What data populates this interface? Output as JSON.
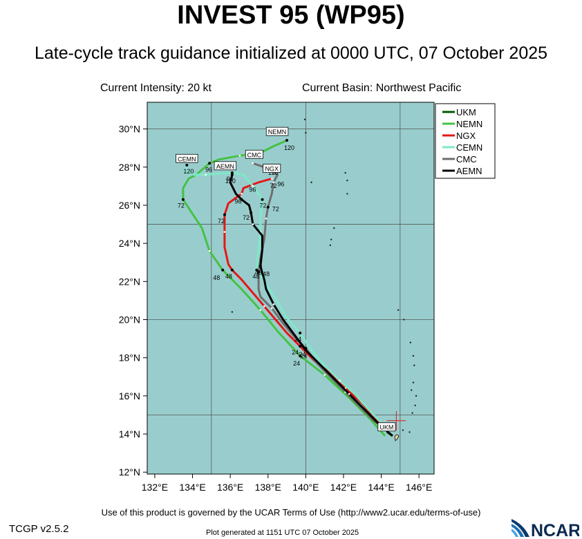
{
  "header": {
    "title": "INVEST 95 (WP95)",
    "subtitle": "Late-cycle track guidance initialized at 0000 UTC, 07 October 2025",
    "intensity": "Current Intensity: 20 kt",
    "basin": "Current Basin: Northwest Pacific"
  },
  "footer": {
    "terms": "Use of this product is governed by the UCAR Terms of Use (http://www2.ucar.edu/terms-of-use)",
    "version": "TCGP v2.5.2",
    "generated": "Plot generated at 1151 UTC   07 October 2025",
    "logo_text": "NCAR"
  },
  "chart_data": {
    "type": "line",
    "xlim": [
      131.6,
      146.8
    ],
    "ylim": [
      11.9,
      31.4
    ],
    "x_ticks": [
      132,
      134,
      136,
      138,
      140,
      142,
      144,
      146
    ],
    "x_tick_labels": [
      "132°E",
      "134°E",
      "136°E",
      "138°E",
      "140°E",
      "142°E",
      "144°E",
      "146°E"
    ],
    "y_ticks": [
      12,
      14,
      16,
      18,
      20,
      22,
      24,
      26,
      28,
      30
    ],
    "y_tick_labels": [
      "12°N",
      "14°N",
      "16°N",
      "18°N",
      "20°N",
      "22°N",
      "24°N",
      "26°N",
      "28°N",
      "30°N"
    ],
    "grid_lon": [
      135,
      140,
      145
    ],
    "grid_lat": [
      15,
      20,
      25,
      30
    ],
    "ocean_color": "#99cdcd",
    "legend_position": "top-right",
    "current_position": {
      "lon": 144.8,
      "lat": 14.7,
      "label": "UKM"
    },
    "series": [
      {
        "name": "UKM",
        "color": "#005a00",
        "points": [
          [
            144.6,
            13.9
          ],
          [
            144.3,
            14.1
          ]
        ],
        "hour_labels": []
      },
      {
        "name": "NEMN",
        "color": "#44c244",
        "points": [
          [
            144.2,
            13.9
          ],
          [
            143.4,
            14.8
          ],
          [
            142.3,
            15.9
          ],
          [
            141.0,
            17.1
          ],
          [
            139.7,
            18.1
          ],
          [
            138.5,
            19.4
          ],
          [
            137.6,
            20.5
          ],
          [
            136.6,
            21.6
          ],
          [
            135.6,
            22.6
          ],
          [
            134.9,
            23.6
          ],
          [
            134.5,
            24.8
          ],
          [
            133.9,
            25.7
          ],
          [
            133.5,
            26.3
          ],
          [
            133.5,
            26.9
          ],
          [
            133.8,
            27.4
          ],
          [
            134.2,
            27.6
          ],
          [
            134.9,
            28.2
          ],
          [
            135.4,
            28.4
          ],
          [
            136.5,
            28.6
          ],
          [
            137.5,
            28.7
          ],
          [
            138.3,
            29.1
          ],
          [
            139.0,
            29.4
          ]
        ],
        "hour_labels": [
          {
            "h": "24",
            "i": 4,
            "dx": -10,
            "dy": 14
          },
          {
            "h": "48",
            "i": 8,
            "dx": -14,
            "dy": 14
          },
          {
            "h": "72",
            "i": 12,
            "dx": -8,
            "dy": 12
          },
          {
            "h": "96",
            "i": 16,
            "dx": -6,
            "dy": 12
          },
          {
            "h": "120",
            "i": 21,
            "dx": -4,
            "dy": 14
          }
        ],
        "end_label": {
          "text": "NEMN",
          "i": 21,
          "dx": -14,
          "dy": -12
        },
        "start_label": {
          "text": "CEMN",
          "lon": 133.7,
          "lat": 28.2
        }
      },
      {
        "name": "NGX",
        "color": "#e51717",
        "points": [
          [
            144.2,
            14.3
          ],
          [
            143.7,
            14.8
          ],
          [
            143.0,
            15.6
          ],
          [
            142.1,
            16.4
          ],
          [
            141.3,
            17.2
          ],
          [
            140.5,
            17.8
          ],
          [
            139.7,
            18.6
          ],
          [
            139.0,
            19.3
          ],
          [
            138.4,
            20.0
          ],
          [
            137.8,
            20.7
          ],
          [
            137.2,
            21.4
          ],
          [
            136.6,
            22.1
          ],
          [
            136.1,
            22.6
          ],
          [
            135.9,
            22.9
          ],
          [
            135.7,
            23.8
          ],
          [
            135.7,
            24.6
          ],
          [
            135.7,
            25.5
          ],
          [
            135.9,
            26.1
          ],
          [
            136.6,
            26.6
          ],
          [
            136.7,
            26.9
          ],
          [
            137.5,
            27.2
          ],
          [
            138.2,
            27.4
          ]
        ],
        "hour_labels": [
          {
            "h": "24",
            "i": 6,
            "dx": -12,
            "dy": 12
          },
          {
            "h": "48",
            "i": 12,
            "dx": -10,
            "dy": 12
          },
          {
            "h": "72",
            "i": 16,
            "dx": -10,
            "dy": 12
          }
        ]
      },
      {
        "name": "CEMN",
        "color": "#7fe8c8",
        "points": [
          [
            144.3,
            14.3
          ],
          [
            143.6,
            15.0
          ],
          [
            142.6,
            16.1
          ],
          [
            141.8,
            16.8
          ],
          [
            141.0,
            17.6
          ],
          [
            140.3,
            18.4
          ],
          [
            139.7,
            19.3
          ],
          [
            139.0,
            20.1
          ],
          [
            138.4,
            21.1
          ],
          [
            137.8,
            22.0
          ],
          [
            137.4,
            22.6
          ],
          [
            137.5,
            23.7
          ],
          [
            137.6,
            24.6
          ],
          [
            137.6,
            25.4
          ],
          [
            137.7,
            26.3
          ],
          [
            137.2,
            27.0
          ],
          [
            136.7,
            27.6
          ],
          [
            136.1,
            27.7
          ],
          [
            134.7,
            27.6
          ],
          [
            134.1,
            27.6
          ],
          [
            133.6,
            27.8
          ],
          [
            133.7,
            28.1
          ]
        ],
        "hour_labels": [
          {
            "h": "24",
            "i": 6,
            "dx": -8,
            "dy": 12
          },
          {
            "h": "48",
            "i": 10,
            "dx": -6,
            "dy": 12
          },
          {
            "h": "72",
            "i": 14,
            "dx": -4,
            "dy": 12
          },
          {
            "h": "96",
            "i": 17,
            "dx": -8,
            "dy": 12
          },
          {
            "h": "120",
            "i": 21,
            "dx": -5,
            "dy": 12
          }
        ]
      },
      {
        "name": "CMC",
        "color": "#6e6e6e",
        "points": [
          [
            144.3,
            14.2
          ],
          [
            143.6,
            14.7
          ],
          [
            142.9,
            15.4
          ],
          [
            142.1,
            16.2
          ],
          [
            141.3,
            17.0
          ],
          [
            140.6,
            17.7
          ],
          [
            140.0,
            18.5
          ],
          [
            139.4,
            19.1
          ],
          [
            138.8,
            19.8
          ],
          [
            138.2,
            20.6
          ],
          [
            137.6,
            21.2
          ],
          [
            137.5,
            21.6
          ],
          [
            137.5,
            22.5
          ],
          [
            137.6,
            23.2
          ],
          [
            137.8,
            24.2
          ],
          [
            137.9,
            25.3
          ],
          [
            138.0,
            25.9
          ],
          [
            138.2,
            26.6
          ],
          [
            138.3,
            27.2
          ],
          [
            138.5,
            27.6
          ],
          [
            137.8,
            28.0
          ],
          [
            137.2,
            28.2
          ]
        ],
        "hour_labels": [
          {
            "h": "24",
            "i": 6,
            "dx": -10,
            "dy": 12
          },
          {
            "h": "48",
            "i": 12,
            "dx": 6,
            "dy": 6
          },
          {
            "h": "72",
            "i": 16,
            "dx": 6,
            "dy": 6
          }
        ],
        "end_label": {
          "text": "CMC",
          "i": 21,
          "dx": 2,
          "dy": -12
        }
      },
      {
        "name": "AEMN",
        "color": "#000000",
        "points": [
          [
            144.6,
            13.9
          ],
          [
            143.9,
            14.5
          ],
          [
            143.1,
            15.3
          ],
          [
            142.3,
            16.1
          ],
          [
            141.5,
            16.9
          ],
          [
            140.7,
            17.7
          ],
          [
            140.0,
            18.4
          ],
          [
            139.4,
            19.2
          ],
          [
            138.8,
            20.0
          ],
          [
            138.3,
            20.8
          ],
          [
            137.9,
            21.6
          ],
          [
            137.8,
            22.1
          ],
          [
            137.6,
            22.8
          ],
          [
            137.7,
            23.7
          ],
          [
            137.7,
            24.4
          ],
          [
            137.2,
            25.0
          ],
          [
            137.1,
            25.6
          ],
          [
            137.0,
            26.0
          ],
          [
            136.6,
            26.3
          ],
          [
            136.3,
            26.6
          ],
          [
            136.0,
            27.2
          ],
          [
            136.1,
            27.6
          ]
        ],
        "hour_labels": [
          {
            "h": "24",
            "i": 6,
            "dx": -8,
            "dy": 12
          },
          {
            "h": "48",
            "i": 12,
            "dx": -8,
            "dy": 12
          },
          {
            "h": "72",
            "i": 16,
            "dx": -12,
            "dy": 10
          },
          {
            "h": "96",
            "i": 18,
            "dx": -10,
            "dy": 6
          },
          {
            "h": "120",
            "i": 21,
            "dx": -10,
            "dy": 12
          }
        ],
        "end_label": {
          "text": "AEMN",
          "i": 21,
          "dx": -10,
          "dy": -12
        }
      }
    ],
    "extra_hour_labels": [
      {
        "h": "120",
        "lon": 138.0,
        "lat": 27.6
      },
      {
        "h": "96",
        "lon": 137.0,
        "lat": 26.7
      },
      {
        "h": "72",
        "lon": 138.1,
        "lat": 26.9
      },
      {
        "h": "96",
        "lon": 138.5,
        "lat": 27.0
      }
    ],
    "extra_box_labels": [
      {
        "text": "NGX",
        "lon": 138.2,
        "lat": 27.9
      }
    ],
    "islands": [
      [
        139.95,
        30.5
      ],
      [
        140.0,
        29.8
      ],
      [
        140.3,
        27.2
      ],
      [
        141.5,
        24.8
      ],
      [
        141.35,
        24.2
      ],
      [
        141.3,
        23.9
      ],
      [
        136.1,
        20.4
      ],
      [
        142.1,
        27.7
      ],
      [
        142.2,
        27.3
      ],
      [
        142.2,
        26.6
      ],
      [
        144.9,
        20.5
      ],
      [
        145.2,
        20.0
      ],
      [
        145.55,
        18.8
      ],
      [
        145.7,
        18.1
      ],
      [
        145.75,
        17.6
      ],
      [
        145.7,
        16.7
      ],
      [
        145.6,
        16.3
      ],
      [
        145.8,
        15.5
      ],
      [
        145.65,
        15.1
      ],
      [
        145.5,
        14.1
      ],
      [
        145.15,
        14.2
      ],
      [
        145.85,
        16.0
      ]
    ]
  }
}
